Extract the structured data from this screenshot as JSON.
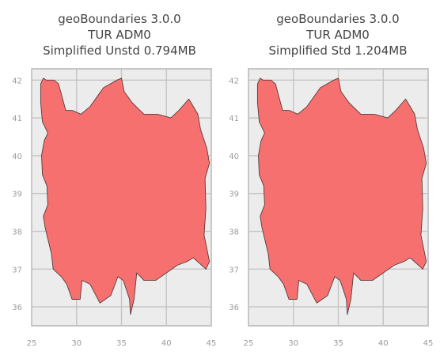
{
  "chart_data": [
    {
      "type": "map",
      "title": [
        "geoBoundaries 3.0.0",
        "TUR ADM0",
        "Simplified Unstd 0.794MB"
      ],
      "xlim": [
        25,
        45
      ],
      "ylim": [
        35.5,
        42.3
      ],
      "xticks": [
        25,
        30,
        35,
        40,
        45
      ],
      "yticks": [
        36,
        37,
        38,
        39,
        40,
        41,
        42
      ],
      "grid": true,
      "fill_color": "#f77070",
      "edge_color": "#5a3a3a",
      "outline": [
        [
          26.0,
          41.9
        ],
        [
          26.3,
          42.05
        ],
        [
          26.6,
          42.0
        ],
        [
          27.5,
          42.0
        ],
        [
          28.0,
          41.9
        ],
        [
          28.8,
          41.2
        ],
        [
          29.5,
          41.2
        ],
        [
          30.5,
          41.1
        ],
        [
          31.5,
          41.3
        ],
        [
          33.0,
          41.8
        ],
        [
          34.5,
          42.0
        ],
        [
          35.0,
          42.05
        ],
        [
          35.3,
          41.7
        ],
        [
          36.2,
          41.4
        ],
        [
          37.5,
          41.1
        ],
        [
          39.0,
          41.1
        ],
        [
          40.5,
          41.0
        ],
        [
          41.4,
          41.2
        ],
        [
          42.5,
          41.5
        ],
        [
          43.5,
          41.1
        ],
        [
          43.8,
          40.7
        ],
        [
          44.5,
          40.2
        ],
        [
          44.8,
          39.8
        ],
        [
          44.3,
          39.4
        ],
        [
          44.4,
          38.6
        ],
        [
          44.2,
          37.9
        ],
        [
          44.8,
          37.2
        ],
        [
          44.4,
          37.0
        ],
        [
          43.0,
          37.3
        ],
        [
          42.3,
          37.2
        ],
        [
          41.2,
          37.1
        ],
        [
          40.0,
          36.9
        ],
        [
          38.8,
          36.7
        ],
        [
          37.5,
          36.7
        ],
        [
          36.7,
          36.9
        ],
        [
          36.4,
          36.2
        ],
        [
          36.0,
          35.8
        ],
        [
          35.9,
          36.2
        ],
        [
          35.2,
          36.7
        ],
        [
          34.6,
          36.8
        ],
        [
          33.8,
          36.3
        ],
        [
          32.6,
          36.1
        ],
        [
          31.5,
          36.6
        ],
        [
          30.6,
          36.7
        ],
        [
          30.4,
          36.2
        ],
        [
          29.5,
          36.2
        ],
        [
          28.9,
          36.6
        ],
        [
          28.3,
          36.8
        ],
        [
          27.4,
          37.0
        ],
        [
          27.2,
          37.4
        ],
        [
          26.9,
          37.7
        ],
        [
          26.5,
          38.1
        ],
        [
          26.3,
          38.4
        ],
        [
          26.8,
          38.7
        ],
        [
          26.7,
          39.2
        ],
        [
          26.2,
          39.5
        ],
        [
          26.1,
          40.0
        ],
        [
          26.4,
          40.4
        ],
        [
          26.8,
          40.6
        ],
        [
          26.2,
          40.9
        ],
        [
          26.0,
          41.4
        ],
        [
          26.0,
          41.9
        ]
      ]
    },
    {
      "type": "map",
      "title": [
        "geoBoundaries 3.0.0",
        "TUR ADM0",
        "Simplified Std 1.204MB"
      ],
      "xlim": [
        25,
        45
      ],
      "ylim": [
        35.5,
        42.3
      ],
      "xticks": [
        25,
        30,
        35,
        40,
        45
      ],
      "yticks": [
        36,
        37,
        38,
        39,
        40,
        41,
        42
      ],
      "grid": true,
      "fill_color": "#f77070",
      "edge_color": "#5a3a3a",
      "outline": [
        [
          26.0,
          41.9
        ],
        [
          26.3,
          42.05
        ],
        [
          26.6,
          42.0
        ],
        [
          27.5,
          42.0
        ],
        [
          28.0,
          41.9
        ],
        [
          28.8,
          41.2
        ],
        [
          29.5,
          41.2
        ],
        [
          30.5,
          41.1
        ],
        [
          31.5,
          41.3
        ],
        [
          33.0,
          41.8
        ],
        [
          34.5,
          42.0
        ],
        [
          35.0,
          42.05
        ],
        [
          35.3,
          41.7
        ],
        [
          36.2,
          41.4
        ],
        [
          37.5,
          41.1
        ],
        [
          39.0,
          41.1
        ],
        [
          40.5,
          41.0
        ],
        [
          41.4,
          41.2
        ],
        [
          42.5,
          41.5
        ],
        [
          43.5,
          41.1
        ],
        [
          43.8,
          40.7
        ],
        [
          44.5,
          40.2
        ],
        [
          44.8,
          39.8
        ],
        [
          44.3,
          39.4
        ],
        [
          44.4,
          38.6
        ],
        [
          44.2,
          37.9
        ],
        [
          44.8,
          37.2
        ],
        [
          44.4,
          37.0
        ],
        [
          43.0,
          37.3
        ],
        [
          42.3,
          37.2
        ],
        [
          41.2,
          37.1
        ],
        [
          40.0,
          36.9
        ],
        [
          38.8,
          36.7
        ],
        [
          37.5,
          36.7
        ],
        [
          36.7,
          36.9
        ],
        [
          36.4,
          36.2
        ],
        [
          36.0,
          35.8
        ],
        [
          35.9,
          36.2
        ],
        [
          35.2,
          36.7
        ],
        [
          34.6,
          36.8
        ],
        [
          33.8,
          36.3
        ],
        [
          32.6,
          36.1
        ],
        [
          31.5,
          36.6
        ],
        [
          30.6,
          36.7
        ],
        [
          30.4,
          36.2
        ],
        [
          29.5,
          36.2
        ],
        [
          28.9,
          36.6
        ],
        [
          28.3,
          36.8
        ],
        [
          27.4,
          37.0
        ],
        [
          27.2,
          37.4
        ],
        [
          26.9,
          37.7
        ],
        [
          26.5,
          38.1
        ],
        [
          26.3,
          38.4
        ],
        [
          26.8,
          38.7
        ],
        [
          26.7,
          39.2
        ],
        [
          26.2,
          39.5
        ],
        [
          26.1,
          40.0
        ],
        [
          26.4,
          40.4
        ],
        [
          26.8,
          40.6
        ],
        [
          26.2,
          40.9
        ],
        [
          26.0,
          41.4
        ],
        [
          26.0,
          41.9
        ]
      ]
    }
  ]
}
